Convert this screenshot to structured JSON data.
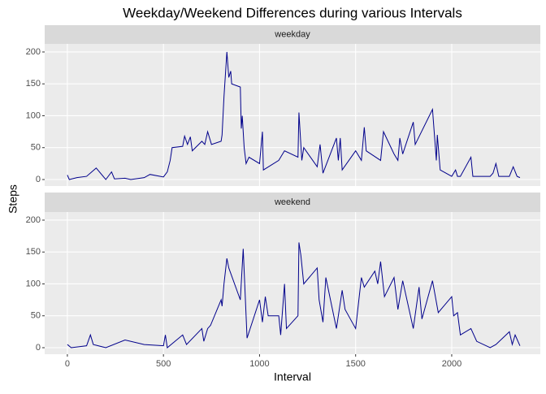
{
  "chart_data": {
    "type": "line",
    "title": "Weekday/Weekend Differences during various Intervals",
    "x_label": "Interval",
    "y_label": "Steps",
    "color": "#00008b",
    "xlim": [
      -118,
      2461
    ],
    "xticks": [
      0,
      500,
      1000,
      1500,
      2000
    ],
    "ylim": [
      -10.2,
      212.7
    ],
    "yticks": [
      0,
      50,
      100,
      150,
      200
    ],
    "grid": true,
    "panels": [
      {
        "label": "weekday",
        "x": [
          0,
          10,
          50,
          100,
          150,
          200,
          230,
          245,
          300,
          330,
          400,
          430,
          500,
          520,
          535,
          545,
          600,
          610,
          625,
          640,
          650,
          700,
          715,
          730,
          750,
          800,
          805,
          815,
          830,
          840,
          850,
          855,
          900,
          905,
          910,
          920,
          930,
          945,
          1000,
          1015,
          1020,
          1100,
          1130,
          1200,
          1205,
          1220,
          1230,
          1300,
          1315,
          1330,
          1400,
          1410,
          1420,
          1430,
          1500,
          1530,
          1545,
          1555,
          1630,
          1645,
          1700,
          1720,
          1730,
          1745,
          1800,
          1810,
          1900,
          1920,
          1925,
          1940,
          2000,
          2020,
          2030,
          2045,
          2100,
          2110,
          2200,
          2215,
          2230,
          2245,
          2300,
          2320,
          2340,
          2355
        ],
        "values": [
          7,
          0,
          3,
          5,
          18,
          0,
          12,
          1,
          2,
          0,
          3,
          8,
          4,
          12,
          30,
          50,
          52,
          68,
          55,
          67,
          45,
          60,
          55,
          75,
          55,
          60,
          70,
          130,
          200,
          160,
          170,
          150,
          145,
          80,
          100,
          50,
          25,
          35,
          25,
          75,
          15,
          30,
          45,
          35,
          105,
          30,
          50,
          20,
          55,
          10,
          65,
          30,
          65,
          15,
          45,
          30,
          82,
          45,
          30,
          75,
          40,
          30,
          65,
          40,
          90,
          55,
          110,
          30,
          70,
          15,
          5,
          15,
          5,
          5,
          35,
          5,
          5,
          10,
          25,
          5,
          5,
          20,
          5,
          3
        ]
      },
      {
        "label": "weekend",
        "x": [
          0,
          20,
          100,
          120,
          135,
          200,
          300,
          400,
          500,
          510,
          520,
          600,
          620,
          700,
          710,
          730,
          745,
          800,
          805,
          815,
          830,
          840,
          900,
          915,
          930,
          935,
          1000,
          1015,
          1030,
          1045,
          1100,
          1110,
          1130,
          1140,
          1200,
          1205,
          1215,
          1230,
          1300,
          1310,
          1330,
          1345,
          1400,
          1430,
          1445,
          1500,
          1530,
          1545,
          1600,
          1615,
          1630,
          1650,
          1700,
          1720,
          1745,
          1800,
          1830,
          1845,
          1900,
          1930,
          2000,
          2010,
          2030,
          2045,
          2100,
          2130,
          2200,
          2230,
          2300,
          2315,
          2330,
          2355
        ],
        "values": [
          5,
          0,
          3,
          20,
          5,
          0,
          12,
          5,
          3,
          20,
          0,
          20,
          5,
          30,
          10,
          30,
          35,
          75,
          65,
          100,
          140,
          125,
          75,
          155,
          50,
          15,
          75,
          40,
          80,
          50,
          50,
          20,
          100,
          30,
          50,
          165,
          145,
          100,
          125,
          75,
          40,
          110,
          30,
          90,
          60,
          30,
          110,
          95,
          120,
          100,
          135,
          80,
          110,
          60,
          105,
          30,
          95,
          45,
          105,
          55,
          80,
          50,
          55,
          20,
          30,
          10,
          0,
          5,
          25,
          5,
          20,
          3
        ]
      }
    ]
  }
}
